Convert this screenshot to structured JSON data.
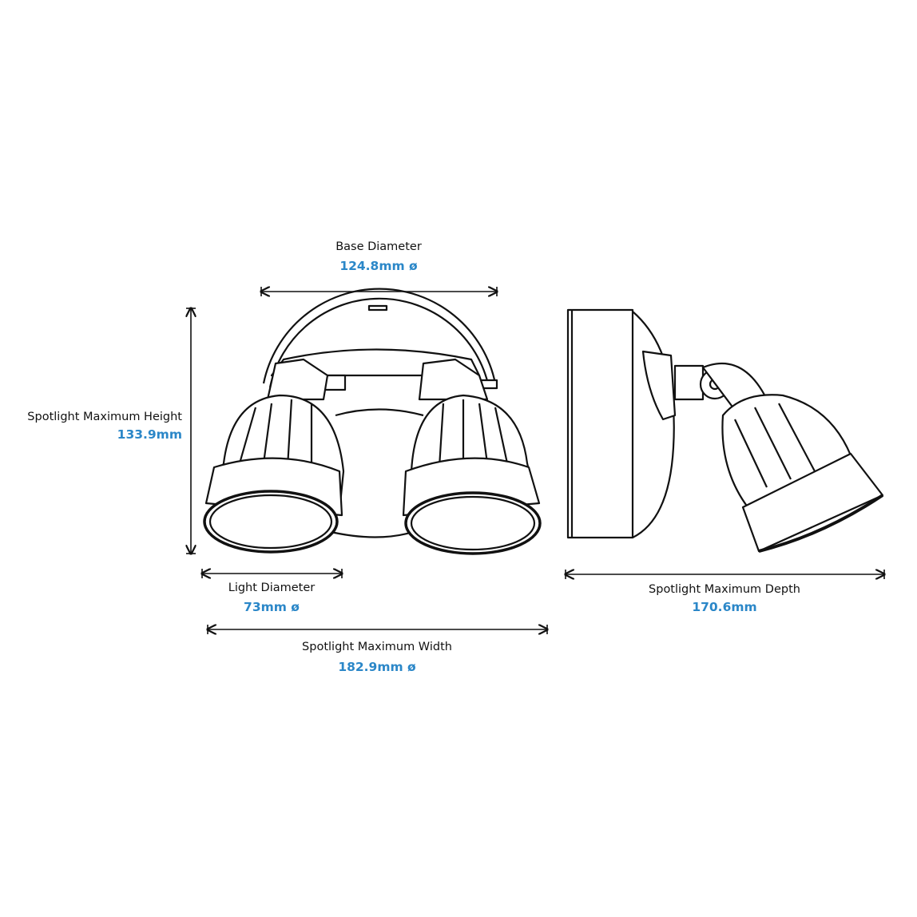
{
  "accent_color": "#2b87c8",
  "dimensions": {
    "base_diameter": {
      "label": "Base Diameter",
      "value": "124.8mm ø"
    },
    "max_height": {
      "label": "Spotlight Maximum Height",
      "value": "133.9mm"
    },
    "light_diameter": {
      "label": "Light Diameter",
      "value": "73mm ø"
    },
    "max_width": {
      "label": "Spotlight Maximum Width",
      "value": "182.9mm ø"
    },
    "max_depth": {
      "label": "Spotlight Maximum Depth",
      "value": "170.6mm"
    }
  }
}
